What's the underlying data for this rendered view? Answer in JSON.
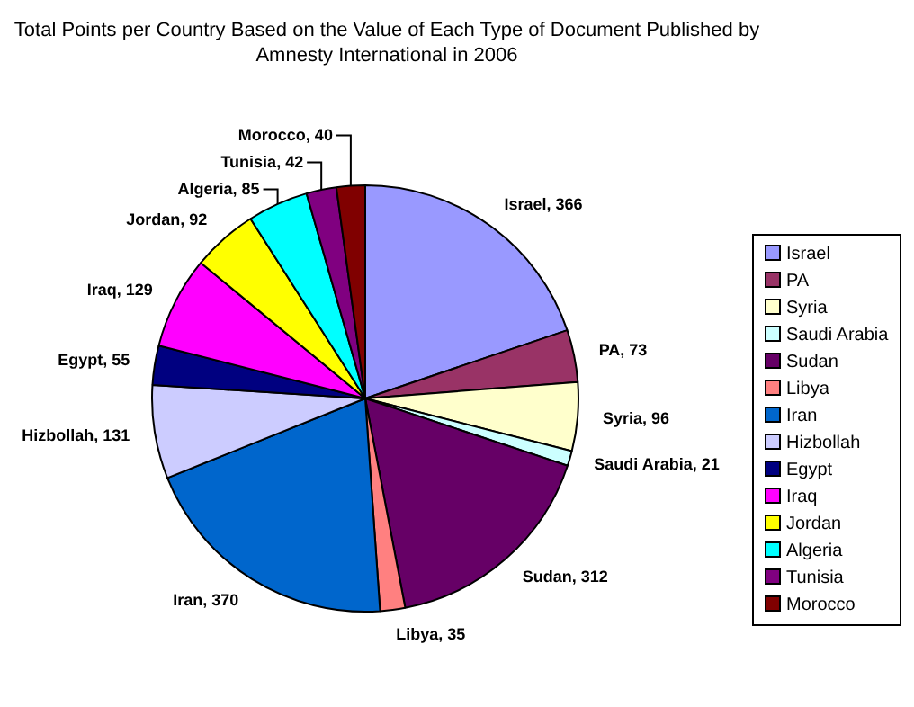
{
  "chart_data": {
    "type": "pie",
    "title": "Total Points per Country Based on the Value of Each Type of Document Published by Amnesty International in 2006",
    "categories": [
      "Israel",
      "PA",
      "Syria",
      "Saudi Arabia",
      "Sudan",
      "Libya",
      "Iran",
      "Hizbollah",
      "Egypt",
      "Iraq",
      "Jordan",
      "Algeria",
      "Tunisia",
      "Morocco"
    ],
    "values": [
      366,
      73,
      96,
      21,
      312,
      35,
      370,
      131,
      55,
      129,
      92,
      85,
      42,
      40
    ],
    "value_labels": [
      "Israel, 366",
      "PA, 73",
      "Syria, 96",
      "Saudi Arabia, 21",
      "Sudan, 312",
      "Libya, 35",
      "Iran, 370",
      "Hizbollah, 131",
      "Egypt, 55",
      "Iraq, 129",
      "Jordan, 92",
      "Algeria, 85",
      "Tunisia, 42",
      "Morocco, 40"
    ],
    "colors": [
      "#9999ff",
      "#993366",
      "#ffffcc",
      "#ccffff",
      "#660066",
      "#ff8080",
      "#0066cc",
      "#ccccff",
      "#000080",
      "#ff00ff",
      "#ffff00",
      "#00ffff",
      "#800080",
      "#800000"
    ],
    "legend": "right"
  }
}
